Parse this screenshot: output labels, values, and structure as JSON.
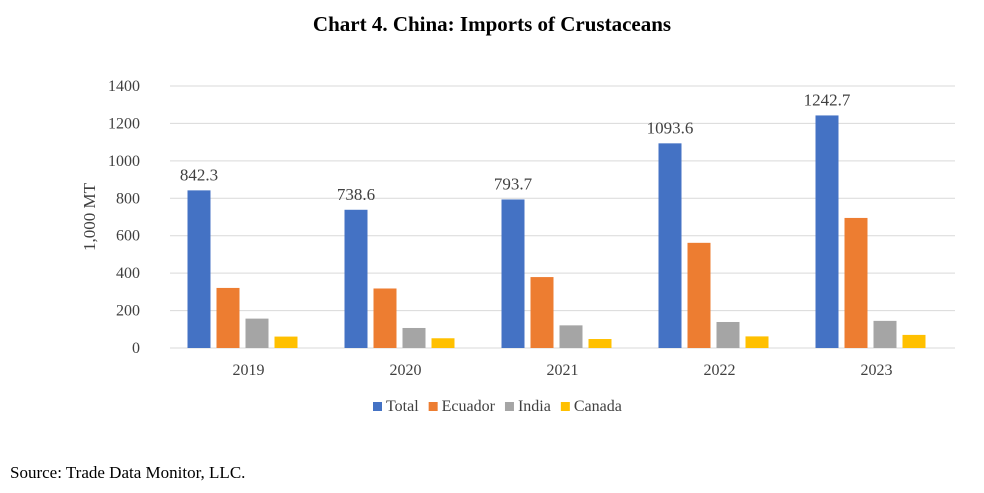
{
  "chart_data": {
    "type": "bar",
    "title": "Chart 4. China: Imports of Crustaceans",
    "ylabel": "1,000 MT",
    "xlabel": "",
    "ylim": [
      0,
      1400
    ],
    "yticks": [
      0,
      200,
      400,
      600,
      800,
      1000,
      1200,
      1400
    ],
    "grid": true,
    "legend": "bottom",
    "categories": [
      "2019",
      "2020",
      "2021",
      "2022",
      "2023"
    ],
    "series": [
      {
        "name": "Total",
        "color": "#4472C4",
        "values": [
          842.3,
          738.6,
          793.7,
          1093.6,
          1242.7
        ],
        "labels": [
          "842.3",
          "738.6",
          "793.7",
          "1093.6",
          "1242.7"
        ]
      },
      {
        "name": "Ecuador",
        "color": "#ED7D31",
        "values": [
          321,
          318,
          379,
          562,
          695
        ]
      },
      {
        "name": "India",
        "color": "#A5A5A5",
        "values": [
          157,
          107,
          121,
          139,
          145
        ]
      },
      {
        "name": "Canada",
        "color": "#FFC000",
        "values": [
          61,
          52,
          48,
          62,
          70
        ]
      }
    ]
  },
  "source": "Source: Trade Data Monitor, LLC."
}
